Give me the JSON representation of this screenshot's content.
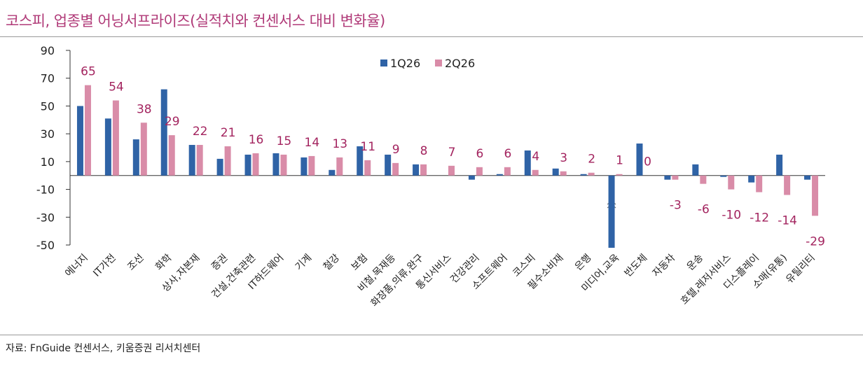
{
  "title": "코스피, 업종별 어닝서프라이즈(실적치와 컨센서스 대비 변화율)",
  "source": "자료: FnGuide 컨센서스, 키움증권 리서치센터",
  "chart_data": {
    "type": "bar",
    "title": "코스피, 업종별 어닝서프라이즈(실적치와 컨센서스 대비 변화율)",
    "xlabel": "",
    "ylabel": "",
    "ylim": [
      -50,
      90
    ],
    "yticks": [
      90,
      70,
      50,
      30,
      10,
      -10,
      -30,
      -50
    ],
    "grid": false,
    "legend_position": "top-center",
    "categories": [
      "에너지",
      "IT가전",
      "조선",
      "화학",
      "상사,자본재",
      "증권",
      "건설,건축관련",
      "IT하드웨어",
      "기계",
      "철강",
      "보험",
      "비철,목재등",
      "화장품,의류,완구",
      "통신서비스",
      "건강관리",
      "소프트웨어",
      "코스피",
      "필수소비재",
      "은행",
      "미디어,교육",
      "반도체",
      "자동차",
      "운송",
      "호텔,레저서비스",
      "디스플레이",
      "소매(유통)",
      "유틸리티"
    ],
    "series": [
      {
        "name": "1Q26",
        "color": "#2f63a6",
        "values": [
          50,
          41,
          26,
          62,
          22,
          12,
          15,
          16,
          13,
          4,
          21,
          15,
          8,
          0,
          -3,
          1,
          18,
          5,
          1,
          -52,
          23,
          -3,
          8,
          -1,
          -5,
          15,
          -3
        ],
        "broken_axis_marker": "미디어,교육"
      },
      {
        "name": "2Q26",
        "color": "#d98ca8",
        "values": [
          65,
          54,
          38,
          29,
          22,
          21,
          16,
          15,
          14,
          13,
          11,
          9,
          8,
          7,
          6,
          6,
          4,
          3,
          2,
          1,
          0,
          -3,
          -6,
          -10,
          -12,
          -14,
          -29
        ],
        "data_labels": [
          "65",
          "54",
          "38",
          "29",
          "22",
          "21",
          "16",
          "15",
          "14",
          "13",
          "11",
          "9",
          "8",
          "7",
          "6",
          "6",
          "4",
          "3",
          "2",
          "1",
          "0",
          "-3",
          "-6",
          "-10",
          "-12",
          "-14",
          "-29"
        ]
      }
    ]
  }
}
